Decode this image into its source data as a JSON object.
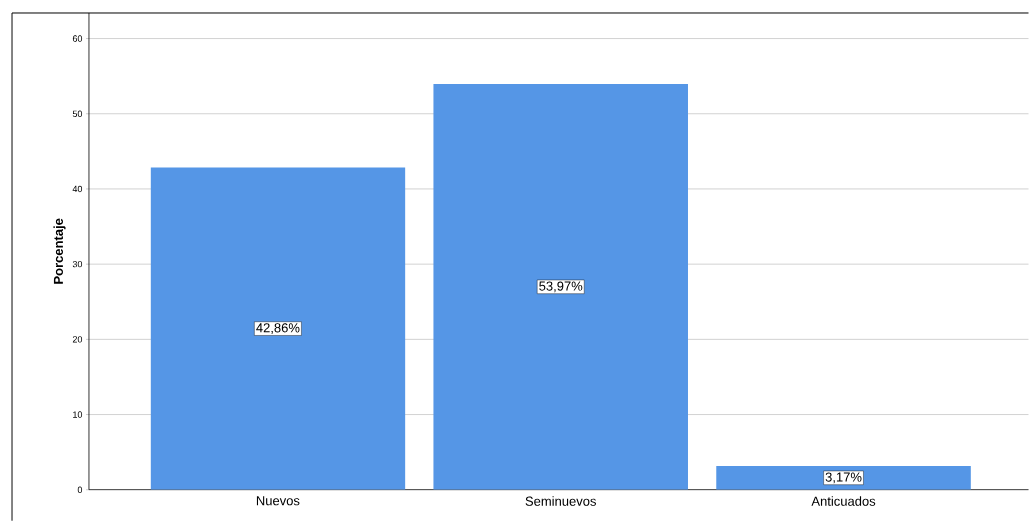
{
  "chart_data": {
    "type": "bar",
    "ylabel": "Porcentaje",
    "categories": [
      "Nuevos",
      "Seminuevos",
      "Anticuados"
    ],
    "values": [
      42.86,
      53.97,
      3.17
    ],
    "value_labels": [
      "42,86%",
      "53,97%",
      "3,17%"
    ],
    "color": "#5596e6",
    "ylim": [
      0,
      63.4
    ],
    "yticks": [
      0,
      10,
      20,
      30,
      40,
      50,
      60
    ],
    "grid": "y"
  }
}
